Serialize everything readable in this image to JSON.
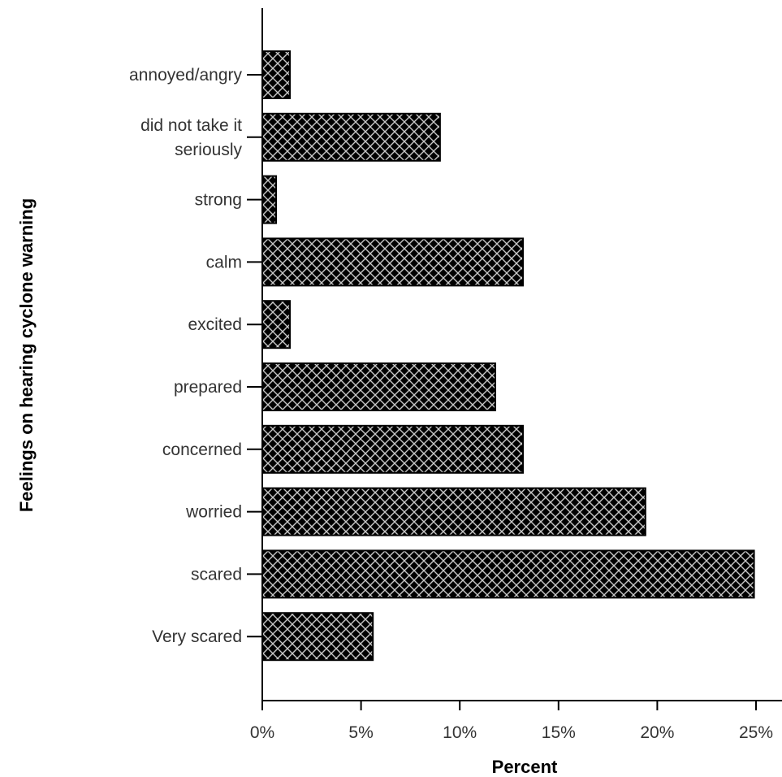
{
  "chart_data": {
    "type": "bar",
    "orientation": "horizontal",
    "title": "",
    "xlabel": "Percent",
    "ylabel": "Feelings on hearing cyclone warning",
    "xlim": [
      0,
      25
    ],
    "x_ticks": [
      0,
      5,
      10,
      15,
      20,
      25
    ],
    "x_tick_format": "percent",
    "grid": false,
    "legend": "none",
    "categories": [
      "annoyed/angry",
      "did not take it seriously",
      "strong",
      "calm",
      "excited",
      "prepared",
      "concerned",
      "worried",
      "scared",
      "Very scared"
    ],
    "category_lines": [
      [
        "annoyed/angry"
      ],
      [
        "did not take it",
        "seriously"
      ],
      [
        "strong"
      ],
      [
        "calm"
      ],
      [
        "excited"
      ],
      [
        "prepared"
      ],
      [
        "concerned"
      ],
      [
        "worried"
      ],
      [
        "scared"
      ],
      [
        "Very scared"
      ]
    ],
    "values": [
      1.4,
      9.0,
      0.7,
      13.2,
      1.4,
      11.8,
      13.2,
      19.4,
      24.9,
      5.6
    ],
    "bar_fill": "#000000",
    "bar_pattern": "crosshatch",
    "hatch_color": "#c8c8c8"
  }
}
